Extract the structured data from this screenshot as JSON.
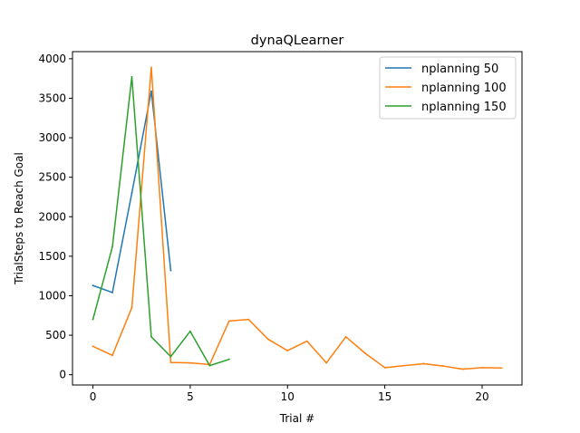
{
  "chart_data": {
    "type": "line",
    "title": "dynaQLearner",
    "xlabel": "Trial #",
    "ylabel": "TrialSteps to Reach Goal",
    "xlim": [
      -1.05,
      22.05
    ],
    "ylim": [
      -130,
      4090
    ],
    "xticks": [
      0,
      5,
      10,
      15,
      20
    ],
    "yticks": [
      0,
      500,
      1000,
      1500,
      2000,
      2500,
      3000,
      3500,
      4000
    ],
    "grid": false,
    "legend_position": "upper right",
    "series": [
      {
        "name": "nplanning 50",
        "color": "#1f77b4",
        "x": [
          0,
          1,
          2,
          3,
          4
        ],
        "y": [
          1130,
          1040,
          2300,
          3590,
          1320
        ]
      },
      {
        "name": "nplanning 100",
        "color": "#ff7f0e",
        "x": [
          0,
          1,
          2,
          3,
          4,
          5,
          6,
          7,
          8,
          9,
          10,
          11,
          12,
          13,
          14,
          15,
          16,
          17,
          18,
          19,
          20,
          21
        ],
        "y": [
          360,
          245,
          850,
          3890,
          155,
          150,
          130,
          680,
          700,
          450,
          305,
          425,
          150,
          480,
          270,
          90,
          115,
          140,
          110,
          70,
          90,
          85
        ]
      },
      {
        "name": "nplanning 150",
        "color": "#2ca02c",
        "x": [
          0,
          1,
          2,
          3,
          4,
          5,
          6,
          7
        ],
        "y": [
          700,
          1620,
          3770,
          480,
          230,
          550,
          115,
          195
        ]
      }
    ]
  }
}
